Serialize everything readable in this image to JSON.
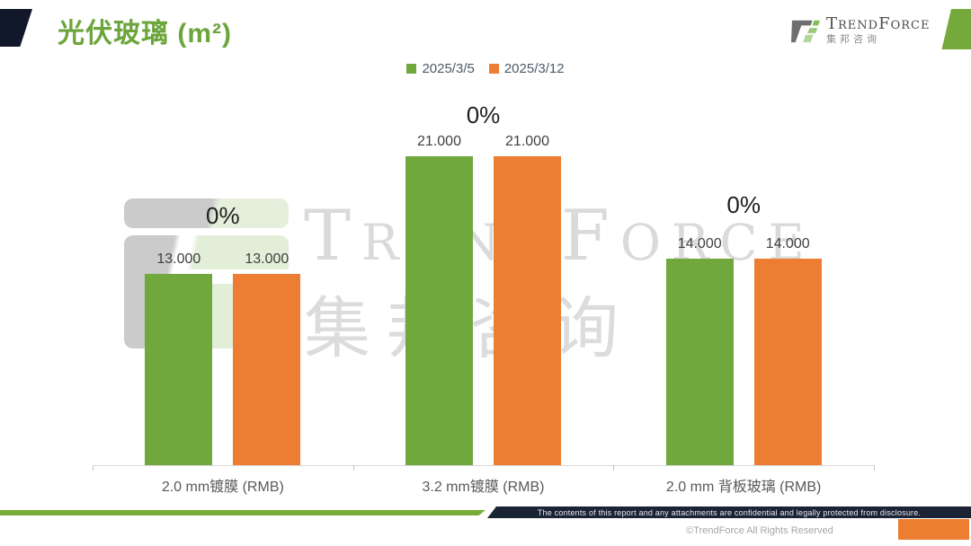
{
  "header": {
    "title": "光伏玻璃 (m²)",
    "brand": {
      "name": "TrendForce",
      "subtitle": "集邦咨询"
    }
  },
  "legend": [
    {
      "label": "2025/3/5",
      "color": "#70a83d"
    },
    {
      "label": "2025/3/12",
      "color": "#ec7d33"
    }
  ],
  "watermark": {
    "text_en": "TrendForce",
    "text_cn": "集邦咨询"
  },
  "chart_data": {
    "type": "bar",
    "title": "光伏玻璃 (m²)",
    "categories": [
      "2.0 mm镀膜 (RMB)",
      "3.2 mm镀膜 (RMB)",
      "2.0 mm 背板玻璃 (RMB)"
    ],
    "series": [
      {
        "name": "2025/3/5",
        "color": "#70a83d",
        "values": [
          13.0,
          21.0,
          14.0
        ]
      },
      {
        "name": "2025/3/12",
        "color": "#ec7d33",
        "values": [
          13.0,
          21.0,
          14.0
        ]
      }
    ],
    "value_labels": [
      [
        "13.000",
        "13.000"
      ],
      [
        "21.000",
        "21.000"
      ],
      [
        "14.000",
        "14.000"
      ]
    ],
    "change_labels": [
      "0%",
      "0%",
      "0%"
    ],
    "xlabel": "",
    "ylabel": "",
    "ylim": [
      0,
      22
    ],
    "grid": false,
    "legend_position": "top"
  },
  "footer": {
    "disclaimer": "The contents of this report and any attachments are confidential and legally protected from disclosure.",
    "copyright": "©TrendForce All Rights Reserved"
  },
  "colors": {
    "accent_green": "#76a93c",
    "accent_dark": "#10182a",
    "bar_green": "#70a83d",
    "bar_orange": "#ec7d33"
  }
}
